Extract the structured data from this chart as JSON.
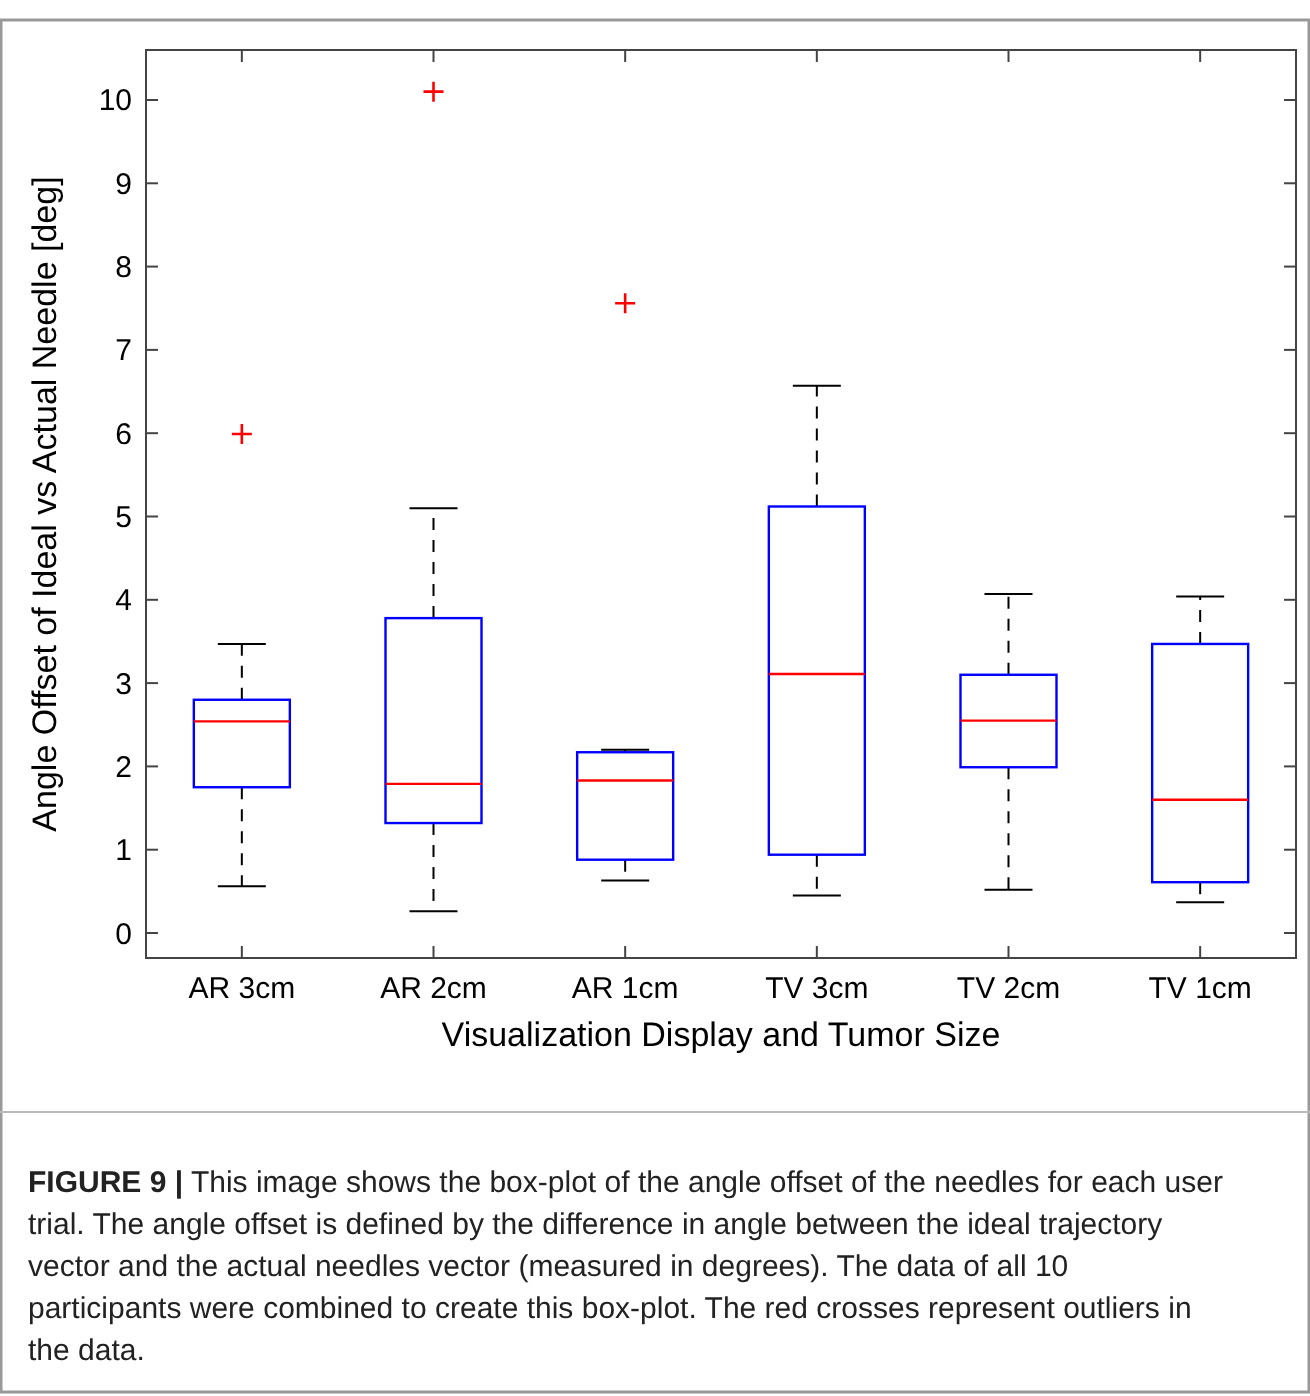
{
  "chart_data": {
    "type": "box",
    "xlabel": "Visualization Display and Tumor Size",
    "ylabel": "Angle Offset of Ideal vs Actual Needle [deg]",
    "categories": [
      "AR 3cm",
      "AR 2cm",
      "AR 1cm",
      "TV 3cm",
      "TV 2cm",
      "TV 1cm"
    ],
    "ylim": [
      -0.3,
      10.6
    ],
    "yticks": [
      0,
      1,
      2,
      3,
      4,
      5,
      6,
      7,
      8,
      9,
      10
    ],
    "series": [
      {
        "color": "#0000ff",
        "boxes": [
          {
            "low": 0.56,
            "q1": 1.75,
            "median": 2.54,
            "q3": 2.8,
            "high": 3.47,
            "outliers": [
              5.99
            ]
          },
          {
            "low": 0.26,
            "q1": 1.32,
            "median": 1.79,
            "q3": 3.78,
            "high": 5.1,
            "outliers": [
              10.1
            ]
          },
          {
            "low": 0.63,
            "q1": 0.88,
            "median": 1.83,
            "q3": 2.17,
            "high": 2.2,
            "outliers": [
              7.56
            ]
          },
          {
            "low": 0.45,
            "q1": 0.94,
            "median": 3.11,
            "q3": 5.12,
            "high": 6.57
          },
          {
            "low": 0.52,
            "q1": 1.99,
            "median": 2.55,
            "q3": 3.1,
            "high": 4.07
          },
          {
            "low": 0.37,
            "q1": 0.61,
            "median": 1.6,
            "q3": 3.47,
            "high": 4.04
          }
        ]
      }
    ],
    "annotations": [
      "FIGURE 9 |",
      "This image shows the box-plot of the angle offset of the needles for each user trial. The angle offset is defined by the difference in angle between the ideal trajectory vector and the actual needles vector (measured in degrees). The data of all 10 participants were combined to create this box-plot. The red crosses represent outliers in the data."
    ]
  }
}
